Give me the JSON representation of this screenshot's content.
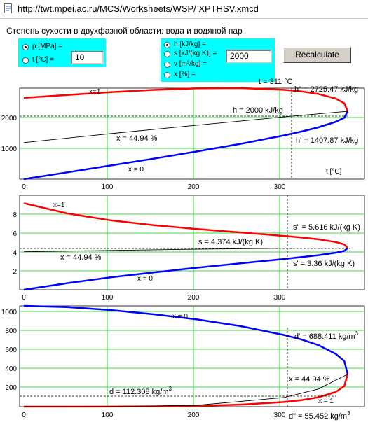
{
  "address_bar": {
    "url": "http://twt.mpei.ac.ru/MCS/Worksheets/WSP/ XPTHSV.xmcd"
  },
  "page": {
    "title": "Степень сухости в двухфазной области: вода и водяной пар"
  },
  "input_panel": {
    "given": [
      {
        "label": "p [MPa] =",
        "selected": true
      },
      {
        "label": "t [°C] =",
        "selected": false
      }
    ],
    "given_value": "10",
    "properties": [
      {
        "label": "h [kJ/kg] =",
        "selected": true
      },
      {
        "label": "s [kJ/(kg K)] =",
        "selected": false
      },
      {
        "label": "v [m³/kg] =",
        "selected": false
      },
      {
        "label": "x [%] =",
        "selected": false
      }
    ],
    "property_value": "2000",
    "recalculate_label": "Recalculate"
  },
  "colors": {
    "liquid_line": "#0000ff",
    "vapor_line": "#ff0000",
    "grid": "#00cc00",
    "panel": "#00ffff"
  },
  "charts": {
    "enthalpy": {
      "t_label": "t = 311 °C",
      "x1_label": "x=1",
      "x0_label": "x = 0",
      "h_vap_label": "h\" = 2725.47 kJ/kg",
      "h_label": "h = 2000 kJ/kg",
      "x_label": "x = 44.94 %",
      "h_liq_label": "h' = 1407.87 kJ/kg",
      "xaxis_label": "t [°C]",
      "yticks": [
        "1000",
        "2000"
      ],
      "xticks": [
        "0",
        "100",
        "200",
        "300"
      ]
    },
    "entropy": {
      "x1_label": "x=1",
      "x0_label": "x = 0",
      "s_vap_label": "s\" = 5.616 kJ/(kg K)",
      "s_label": "s = 4.374 kJ/(kg K)",
      "x_label": "x = 44.94 %",
      "s_liq_label": "s' = 3.36 kJ/(kg K)",
      "yticks": [
        "2",
        "4",
        "6",
        "8"
      ],
      "xticks": [
        "0",
        "100",
        "200",
        "300"
      ]
    },
    "density": {
      "x0_label": "x = 0",
      "x1_label": "x = 1",
      "d_liq_label": "d' = 688.411 kg/m",
      "d_liq_unit_sup": "3",
      "x_label": "x = 44.94 %",
      "d_label": "d = 112.308 kg/m",
      "d_unit_sup": "3",
      "d_vap_label": "d\" = 55.452 kg/m",
      "d_vap_unit_sup": "3",
      "yticks": [
        "200",
        "400",
        "600",
        "800",
        "1000"
      ],
      "xticks": [
        "0",
        "100",
        "200",
        "300"
      ]
    }
  },
  "chart_data": [
    {
      "type": "line",
      "xlabel": "t [°C]",
      "xlim": [
        0,
        373.9
      ],
      "ylim": [
        0,
        2800
      ],
      "series": [
        {
          "x": [
            0,
            50,
            100,
            150,
            200,
            250,
            300,
            320,
            340,
            360,
            370,
            373.9
          ],
          "values": [
            0,
            209,
            419,
            632,
            852,
            1086,
            1345,
            1462,
            1594,
            1761,
            1890,
            2087
          ]
        },
        {
          "x": [
            0,
            50,
            100,
            150,
            200,
            250,
            300,
            320,
            340,
            360,
            370,
            373.9
          ],
          "values": [
            2500,
            2592,
            2676,
            2746,
            2793,
            2802,
            2749,
            2700,
            2622,
            2482,
            2334,
            2087
          ]
        },
        {
          "x": [
            0,
            100,
            200,
            300,
            373.9
          ],
          "values": [
            1125,
            1400,
            1660,
            1915,
            2087
          ]
        }
      ],
      "markers": {
        "t": 311,
        "h_vap": 2725.47,
        "h": 2000,
        "h_liq": 1407.87,
        "x_percent": 44.94
      }
    },
    {
      "type": "line",
      "xlim": [
        0,
        373.9
      ],
      "ylim": [
        0,
        10
      ],
      "series": [
        {
          "x": [
            0,
            50,
            100,
            150,
            200,
            250,
            300,
            320,
            340,
            360,
            370,
            373.9
          ],
          "values": [
            0,
            0.7,
            1.31,
            1.84,
            2.33,
            2.79,
            3.25,
            3.45,
            3.66,
            3.92,
            4.11,
            4.41
          ]
        },
        {
          "x": [
            0,
            50,
            100,
            150,
            200,
            250,
            300,
            320,
            340,
            360,
            370,
            373.9
          ],
          "values": [
            9.16,
            8.08,
            7.35,
            6.84,
            6.43,
            6.07,
            5.7,
            5.54,
            5.34,
            5.05,
            4.8,
            4.41
          ]
        },
        {
          "x": [
            0,
            100,
            200,
            300,
            373.9
          ],
          "values": [
            4.02,
            4.16,
            4.29,
            4.4,
            4.41
          ]
        }
      ],
      "markers": {
        "t": 311,
        "s_vap": 5.616,
        "s": 4.374,
        "s_liq": 3.36,
        "x_percent": 44.94
      }
    },
    {
      "type": "line",
      "xlim": [
        0,
        373.9
      ],
      "ylim": [
        0,
        1000
      ],
      "series": [
        {
          "x": [
            0,
            50,
            100,
            150,
            200,
            250,
            300,
            320,
            340,
            360,
            370,
            373.9
          ],
          "values": [
            1000,
            988,
            958,
            917,
            865,
            799,
            712,
            668,
            611,
            524,
            452,
            322
          ]
        },
        {
          "x": [
            0,
            50,
            100,
            150,
            200,
            250,
            300,
            320,
            340,
            360,
            370,
            373.9
          ],
          "values": [
            0.005,
            0.08,
            0.6,
            2.5,
            7.9,
            20,
            46,
            64,
            93,
            145,
            204,
            322
          ]
        },
        {
          "x": [
            0,
            100,
            200,
            300,
            340,
            373.9
          ],
          "values": [
            0,
            1,
            14,
            90,
            175,
            322
          ]
        }
      ],
      "markers": {
        "t": 311,
        "d_liq": 688.411,
        "d": 112.308,
        "d_vap": 55.452,
        "x_percent": 44.94
      }
    }
  ]
}
